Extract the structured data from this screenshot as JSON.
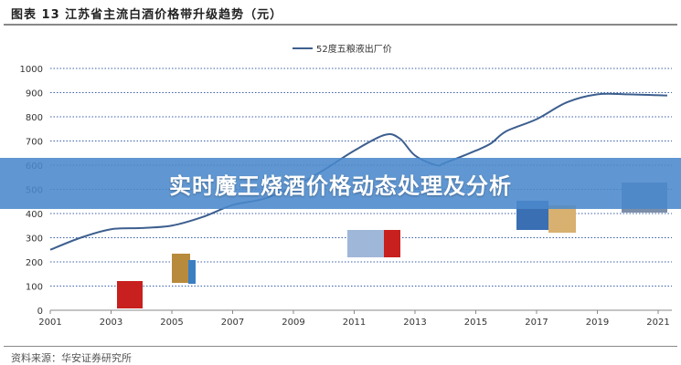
{
  "header": {
    "title": "图表 13 江苏省主流白酒价格带升级趋势（元）"
  },
  "footer": {
    "source": "资料来源：华安证券研究所"
  },
  "banner": {
    "text": "实时魔王烧酒价格动态处理及分析"
  },
  "colors": {
    "line": "#3d5f8f",
    "grid": "#3b5fa8",
    "banner": "#4a89cc"
  },
  "chart_data": {
    "type": "line",
    "title": "图表 13 江苏省主流白酒价格带升级趋势（元）",
    "xlabel": "",
    "ylabel": "",
    "xlim": [
      2001,
      2021.4
    ],
    "ylim": [
      0,
      1000
    ],
    "x_ticks": [
      "2001",
      "2003",
      "2005",
      "2007",
      "2009",
      "2011",
      "2013",
      "2015",
      "2017",
      "2019",
      "2021"
    ],
    "y_ticks": [
      "0",
      "100",
      "200",
      "300",
      "400",
      "500",
      "600",
      "700",
      "800",
      "900",
      "1000"
    ],
    "grid": "horizontal dotted",
    "legend": "top-right",
    "series": [
      {
        "name": "52度五粮液出厂价",
        "x": [
          2001,
          2002,
          2003,
          2004,
          2005,
          2006,
          2007,
          2008,
          2009,
          2010,
          2011,
          2012,
          2012.5,
          2013,
          2013.7,
          2014,
          2015,
          2015.5,
          2016,
          2017,
          2018,
          2019,
          2020,
          2021.3
        ],
        "y": [
          250,
          300,
          335,
          340,
          350,
          385,
          435,
          460,
          510,
          580,
          660,
          725,
          710,
          640,
          600,
          610,
          660,
          690,
          740,
          790,
          860,
          893,
          893,
          888
        ]
      }
    ]
  }
}
